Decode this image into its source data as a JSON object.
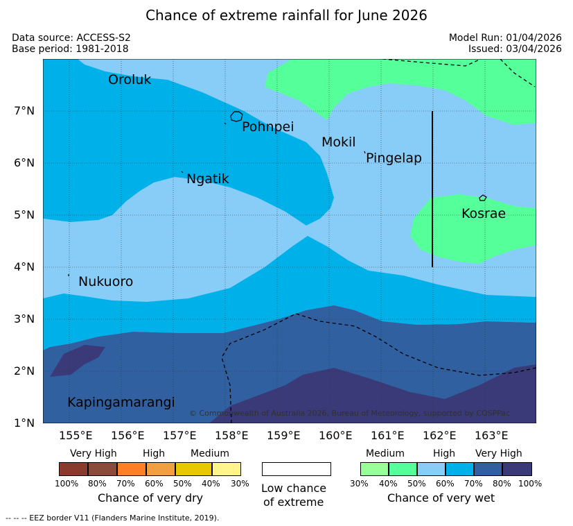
{
  "title": "Chance of extreme rainfall for June 2026",
  "data_source": "Data source: ACCESS-S2",
  "base_period": "Base period: 1981-2018",
  "model_run": "Model Run: 01/04/2026",
  "issued": "Issued: 03/04/2026",
  "x_ticks": [
    "155°E",
    "156°E",
    "157°E",
    "158°E",
    "159°E",
    "160°E",
    "161°E",
    "162°E",
    "163°E"
  ],
  "y_ticks": [
    "7°N",
    "6°N",
    "5°N",
    "4°N",
    "3°N",
    "2°N",
    "1°N"
  ],
  "places": {
    "oroluk": "Oroluk",
    "pohnpei": "Pohnpei",
    "mokil": "Mokil",
    "pingelap": "Pingelap",
    "ngatik": "Ngatik",
    "kosrae": "Kosrae",
    "nukuoro": "Nukuoro",
    "kapingamarangi": "Kapingamarangi"
  },
  "copyright": "© Commonwealth of Australia 2026, Bureau of Meteorology, supported by COSPPac",
  "legend": {
    "dry": {
      "headers": [
        "Very High",
        "High",
        "Medium"
      ],
      "colors": [
        "#8b3a2e",
        "#8b4a3a",
        "#ff7f27",
        "#f0a040",
        "#e8c800",
        "#fff58a"
      ],
      "ticks": [
        "100%",
        "80%",
        "70%",
        "60%",
        "50%",
        "40%",
        "30%"
      ],
      "caption": "Chance of very dry"
    },
    "low": {
      "color": "#ffffff",
      "line1": "Low chance",
      "line2": "of extreme"
    },
    "wet": {
      "headers": [
        "Medium",
        "High",
        "Very High"
      ],
      "colors": [
        "#99ff99",
        "#55ff99",
        "#88ccf8",
        "#00b0e8",
        "#3060a0",
        "#3a3a78"
      ],
      "ticks": [
        "30%",
        "40%",
        "50%",
        "60%",
        "70%",
        "80%",
        "100%"
      ],
      "caption": "Chance of very wet"
    }
  },
  "footnote": "--  --  -- EEZ border V11 (Flanders Marine Institute, 2019)."
}
